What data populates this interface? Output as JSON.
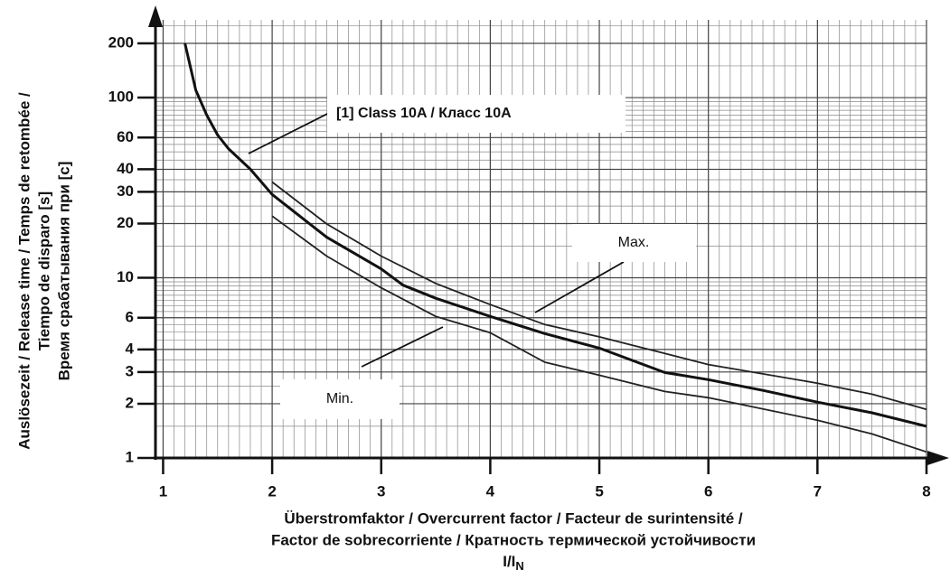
{
  "chart_data": {
    "type": "line",
    "ylabel": [
      "Auslösezeit / Release time / Temps de retombée /",
      "Tiempo de disparo  [s]",
      "Время срабатывания при [c]"
    ],
    "xlabel": [
      "Überstromfaktor  / Overcurrent factor  /  Facteur de surintensité /",
      "Factor de sobrecorriente / Кратность термической устойчивости",
      {
        "text": "I/I",
        "sub": "N"
      }
    ],
    "xlim": [
      0.93,
      8
    ],
    "ylim": [
      1,
      270
    ],
    "log_y": true,
    "grid": true,
    "xticks": [
      1,
      2,
      3,
      4,
      5,
      6,
      7,
      8
    ],
    "yticks": [
      1,
      2,
      3,
      4,
      6,
      10,
      20,
      30,
      40,
      60,
      100,
      200
    ],
    "series": [
      {
        "name": "[1]   Class 10A / Класс 10A",
        "color": "#111111",
        "x": [
          1.2,
          1.3,
          1.4,
          1.5,
          1.6,
          1.8,
          2.0,
          2.5,
          3.0,
          3.2,
          3.5,
          4.0,
          4.5,
          5.0,
          5.6,
          6.0,
          6.5,
          7.0,
          7.5,
          8.0
        ],
        "values": [
          200,
          110,
          80,
          62,
          52,
          40,
          29,
          16.8,
          11.2,
          9.1,
          7.7,
          6.1,
          4.9,
          4.07,
          2.98,
          2.72,
          2.37,
          2.04,
          1.78,
          1.5
        ]
      },
      {
        "name": "Max.",
        "color": "#222222",
        "x": [
          2.0,
          2.5,
          3.0,
          3.5,
          4.0,
          4.5,
          5.0,
          5.6,
          6.0,
          7.0,
          7.5,
          8.0
        ],
        "values": [
          34,
          19.9,
          13.2,
          9.3,
          7.1,
          5.5,
          4.7,
          3.8,
          3.3,
          2.6,
          2.26,
          1.86
        ]
      },
      {
        "name": "Min.",
        "color": "#222222",
        "x": [
          2.0,
          2.5,
          3.0,
          3.5,
          4.0,
          4.5,
          5.0,
          5.6,
          6.0,
          7.0,
          7.5,
          8.0
        ],
        "values": [
          22,
          13.2,
          8.8,
          6.1,
          4.95,
          3.4,
          2.88,
          2.34,
          2.16,
          1.62,
          1.36,
          1.08
        ]
      }
    ]
  }
}
